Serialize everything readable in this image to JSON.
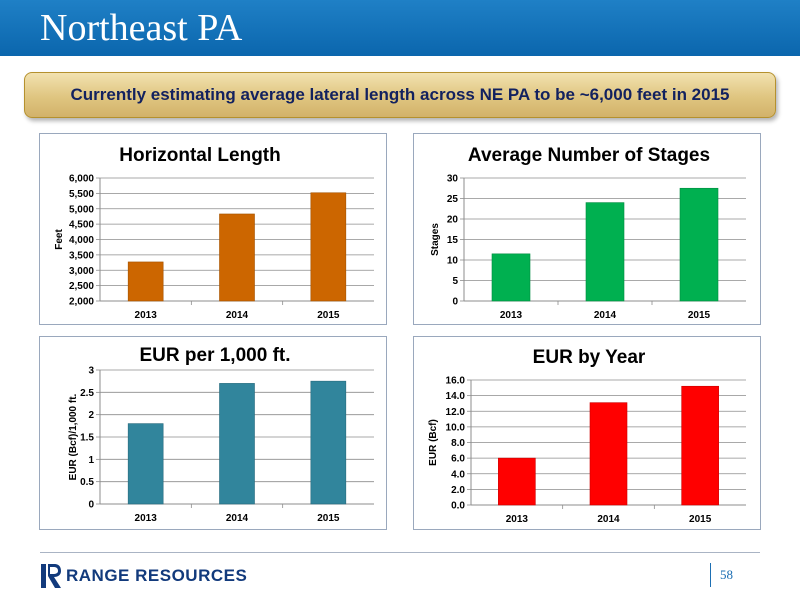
{
  "header": {
    "title": "Northeast PA"
  },
  "banner": {
    "text": "Currently estimating average lateral length across NE PA to be ~6,000 feet in 2015"
  },
  "chart_data": [
    {
      "type": "bar",
      "title": "Horizontal Length",
      "xlabel": "",
      "ylabel": "Feet",
      "categories": [
        "2013",
        "2014",
        "2015"
      ],
      "values": [
        3270,
        4830,
        5520
      ],
      "ylim": [
        2000,
        6000
      ],
      "yticks": [
        2000,
        2500,
        3000,
        3500,
        4000,
        4500,
        5000,
        5500,
        6000
      ],
      "ytick_labels": [
        "2,000",
        "2,500",
        "3,000",
        "3,500",
        "4,000",
        "4,500",
        "5,000",
        "5,500",
        "6,000"
      ],
      "color": "#cc6600",
      "grid": true
    },
    {
      "type": "bar",
      "title": "Average Number of Stages",
      "xlabel": "",
      "ylabel": "Stages",
      "categories": [
        "2013",
        "2014",
        "2015"
      ],
      "values": [
        11.5,
        24,
        27.5
      ],
      "ylim": [
        0,
        30
      ],
      "yticks": [
        0,
        5,
        10,
        15,
        20,
        25,
        30
      ],
      "ytick_labels": [
        "0",
        "5",
        "10",
        "15",
        "20",
        "25",
        "30"
      ],
      "color": "#00b050",
      "grid": true
    },
    {
      "type": "bar",
      "title": "EUR per 1,000 ft.",
      "xlabel": "",
      "ylabel": "EUR (Bcf)/1,000 ft.",
      "categories": [
        "2013",
        "2014",
        "2015"
      ],
      "values": [
        1.8,
        2.7,
        2.75
      ],
      "ylim": [
        0,
        3
      ],
      "yticks": [
        0,
        0.5,
        1,
        1.5,
        2,
        2.5,
        3
      ],
      "ytick_labels": [
        "0",
        "0.5",
        "1",
        "1.5",
        "2",
        "2.5",
        "3"
      ],
      "color": "#31859c",
      "grid": true
    },
    {
      "type": "bar",
      "title": "EUR by Year",
      "xlabel": "",
      "ylabel": "EUR (Bcf)",
      "categories": [
        "2013",
        "2014",
        "2015"
      ],
      "values": [
        6.0,
        13.1,
        15.2
      ],
      "ylim": [
        0,
        16
      ],
      "yticks": [
        0,
        2,
        4,
        6,
        8,
        10,
        12,
        14,
        16
      ],
      "ytick_labels": [
        "0.0",
        "2.0",
        "4.0",
        "6.0",
        "8.0",
        "10.0",
        "12.0",
        "14.0",
        "16.0"
      ],
      "color": "#ff0000",
      "grid": true
    }
  ],
  "footer": {
    "logo_text": "RANGE RESOURCES",
    "logo_mark": "",
    "logo_icon": "range-resources-r-mark",
    "page_number": "58"
  }
}
